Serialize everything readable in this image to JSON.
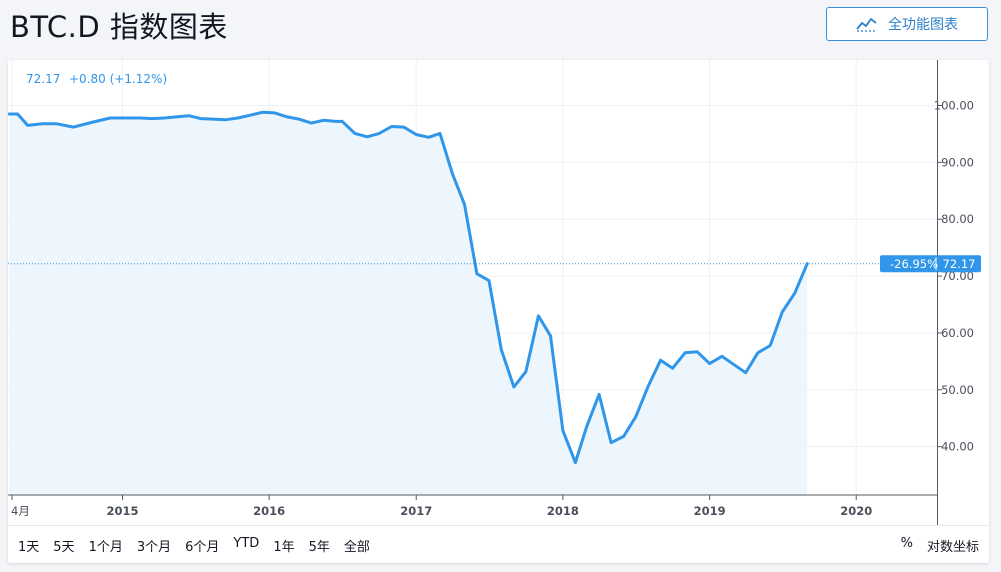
{
  "header": {
    "title": "BTC.D 指数图表",
    "full_chart_button": "全功能图表",
    "full_chart_icon": "chart-line-icon"
  },
  "legend": {
    "value": "72.17",
    "change": "+0.80 (+1.12%)",
    "color": "#2f96ea"
  },
  "price_tag": {
    "percent": "-26.95%",
    "value": "72.17"
  },
  "toolbar": {
    "ranges": [
      "1天",
      "5天",
      "1个月",
      "3个月",
      "6个月",
      "YTD",
      "1年",
      "5年",
      "全部"
    ],
    "percent": "%",
    "log_scale": "对数坐标"
  },
  "colors": {
    "line": "#2f96ea",
    "area": "#eef6fd",
    "grid": "#edf0f4",
    "tag_bg": "#2f96ea",
    "accent": "#2f80c9"
  },
  "chart_data": {
    "type": "area",
    "x_ticks": [
      "4月",
      "2015",
      "2016",
      "2017",
      "2018",
      "2019",
      "2020"
    ],
    "y_ticks": [
      "100.00",
      "90.00",
      "80.00",
      "70.00",
      "60.00",
      "50.00",
      "40.00"
    ],
    "ylim": [
      31.5,
      108
    ],
    "xlim": [
      "2014-03-22",
      "2020-07-20"
    ],
    "grid": true,
    "last_value": 72.17,
    "series": [
      {
        "x": [
          "2014-03-25",
          "2014-04-15",
          "2014-05-10",
          "2014-06-15",
          "2014-07-20",
          "2014-09-01",
          "2014-10-15",
          "2014-12-01",
          "2015-01-15",
          "2015-02-15",
          "2015-03-15",
          "2015-04-15",
          "2015-05-15",
          "2015-06-15",
          "2015-07-15",
          "2015-08-15",
          "2015-09-15",
          "2015-10-15",
          "2015-11-15",
          "2015-12-15",
          "2016-01-15",
          "2016-02-15",
          "2016-03-15",
          "2016-04-15",
          "2016-05-15",
          "2016-06-15",
          "2016-07-01",
          "2016-08-01",
          "2016-09-01",
          "2016-10-01",
          "2016-11-01",
          "2016-12-01",
          "2017-01-01",
          "2017-02-01",
          "2017-03-01",
          "2017-04-01",
          "2017-05-01",
          "2017-06-01",
          "2017-07-01",
          "2017-08-01",
          "2017-09-01",
          "2017-10-01",
          "2017-11-01",
          "2017-12-01",
          "2018-01-01",
          "2018-02-01",
          "2018-03-01",
          "2018-04-01",
          "2018-05-01",
          "2018-06-01",
          "2018-07-01",
          "2018-08-01",
          "2018-09-01",
          "2018-10-01",
          "2018-11-01",
          "2018-12-01",
          "2019-01-01",
          "2019-02-01",
          "2019-03-01",
          "2019-04-01",
          "2019-05-01",
          "2019-06-01",
          "2019-07-01",
          "2019-08-01",
          "2019-09-01"
        ],
        "y": [
          98.5,
          98.5,
          96.5,
          96.8,
          96.8,
          96.2,
          97.0,
          97.8,
          97.8,
          97.8,
          97.7,
          97.8,
          98.0,
          98.2,
          97.7,
          97.6,
          97.5,
          97.8,
          98.3,
          98.8,
          98.7,
          98.0,
          97.6,
          96.9,
          97.4,
          97.2,
          97.2,
          95.1,
          94.5,
          95.1,
          96.3,
          96.2,
          94.9,
          94.4,
          95.1,
          88.0,
          82.6,
          70.4,
          69.2,
          57.0,
          50.5,
          53.2,
          63.0,
          59.5,
          42.8,
          37.2,
          43.5,
          49.2,
          40.7,
          41.8,
          45.2,
          50.6,
          55.2,
          53.8,
          56.5,
          56.7,
          54.6,
          55.9,
          54.5,
          53.0,
          56.5,
          57.8,
          63.7,
          67.0,
          72.17
        ]
      }
    ]
  }
}
